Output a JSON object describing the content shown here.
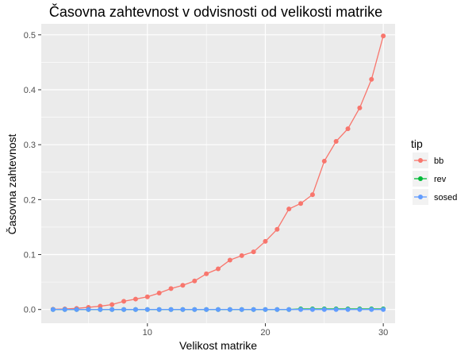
{
  "chart_data": {
    "type": "line",
    "title": "Časovna zahtevnost v odvisnosti od velikosti matrike",
    "xlabel": "Velikost matrike",
    "ylabel": "Časovna zahtevnost",
    "xlim": [
      1,
      31
    ],
    "ylim": [
      -0.025,
      0.52
    ],
    "x_ticks": [
      10,
      20,
      30
    ],
    "x_minor_ticks": [
      5,
      15,
      25
    ],
    "y_ticks": [
      0.0,
      0.1,
      0.2,
      0.3,
      0.4,
      0.5
    ],
    "y_tick_labels": [
      "0.0",
      "0.1",
      "0.2",
      "0.3",
      "0.4",
      "0.5"
    ],
    "grid": true,
    "legend": {
      "title": "tip",
      "position": "right"
    },
    "x": [
      2,
      3,
      4,
      5,
      6,
      7,
      8,
      9,
      10,
      11,
      12,
      13,
      14,
      15,
      16,
      17,
      18,
      19,
      20,
      21,
      22,
      23,
      24,
      25,
      26,
      27,
      28,
      29,
      30
    ],
    "series": [
      {
        "name": "bb",
        "color": "#F8766D",
        "values": [
          0.0005,
          0.001,
          0.002,
          0.004,
          0.006,
          0.009,
          0.015,
          0.019,
          0.023,
          0.03,
          0.038,
          0.044,
          0.052,
          0.065,
          0.074,
          0.09,
          0.098,
          0.105,
          0.124,
          0.146,
          0.183,
          0.193,
          0.209,
          0.27,
          0.306,
          0.329,
          0.367,
          0.419,
          0.498
        ]
      },
      {
        "name": "rev",
        "color": "#00BA38",
        "values": [
          0.0,
          0.0,
          0.0,
          0.0,
          0.0,
          0.0,
          0.0,
          0.0,
          0.0,
          0.0,
          0.0,
          0.0,
          0.0,
          0.0,
          0.0,
          0.0,
          0.0,
          0.0,
          0.0,
          0.0,
          0.0,
          0.001,
          0.001,
          0.001,
          0.001,
          0.001,
          0.001,
          0.001,
          0.001
        ]
      },
      {
        "name": "sosed",
        "color": "#619CFF",
        "values": [
          0.0,
          0.0,
          0.0,
          0.0,
          0.0,
          0.0,
          0.0,
          0.0,
          0.0,
          0.0,
          0.0,
          0.0,
          0.0,
          0.0,
          0.0,
          0.0,
          0.0,
          0.0,
          0.0,
          0.0,
          0.0,
          0.0,
          0.0,
          0.0,
          0.0,
          0.0,
          0.0,
          0.0,
          0.0
        ]
      }
    ]
  }
}
